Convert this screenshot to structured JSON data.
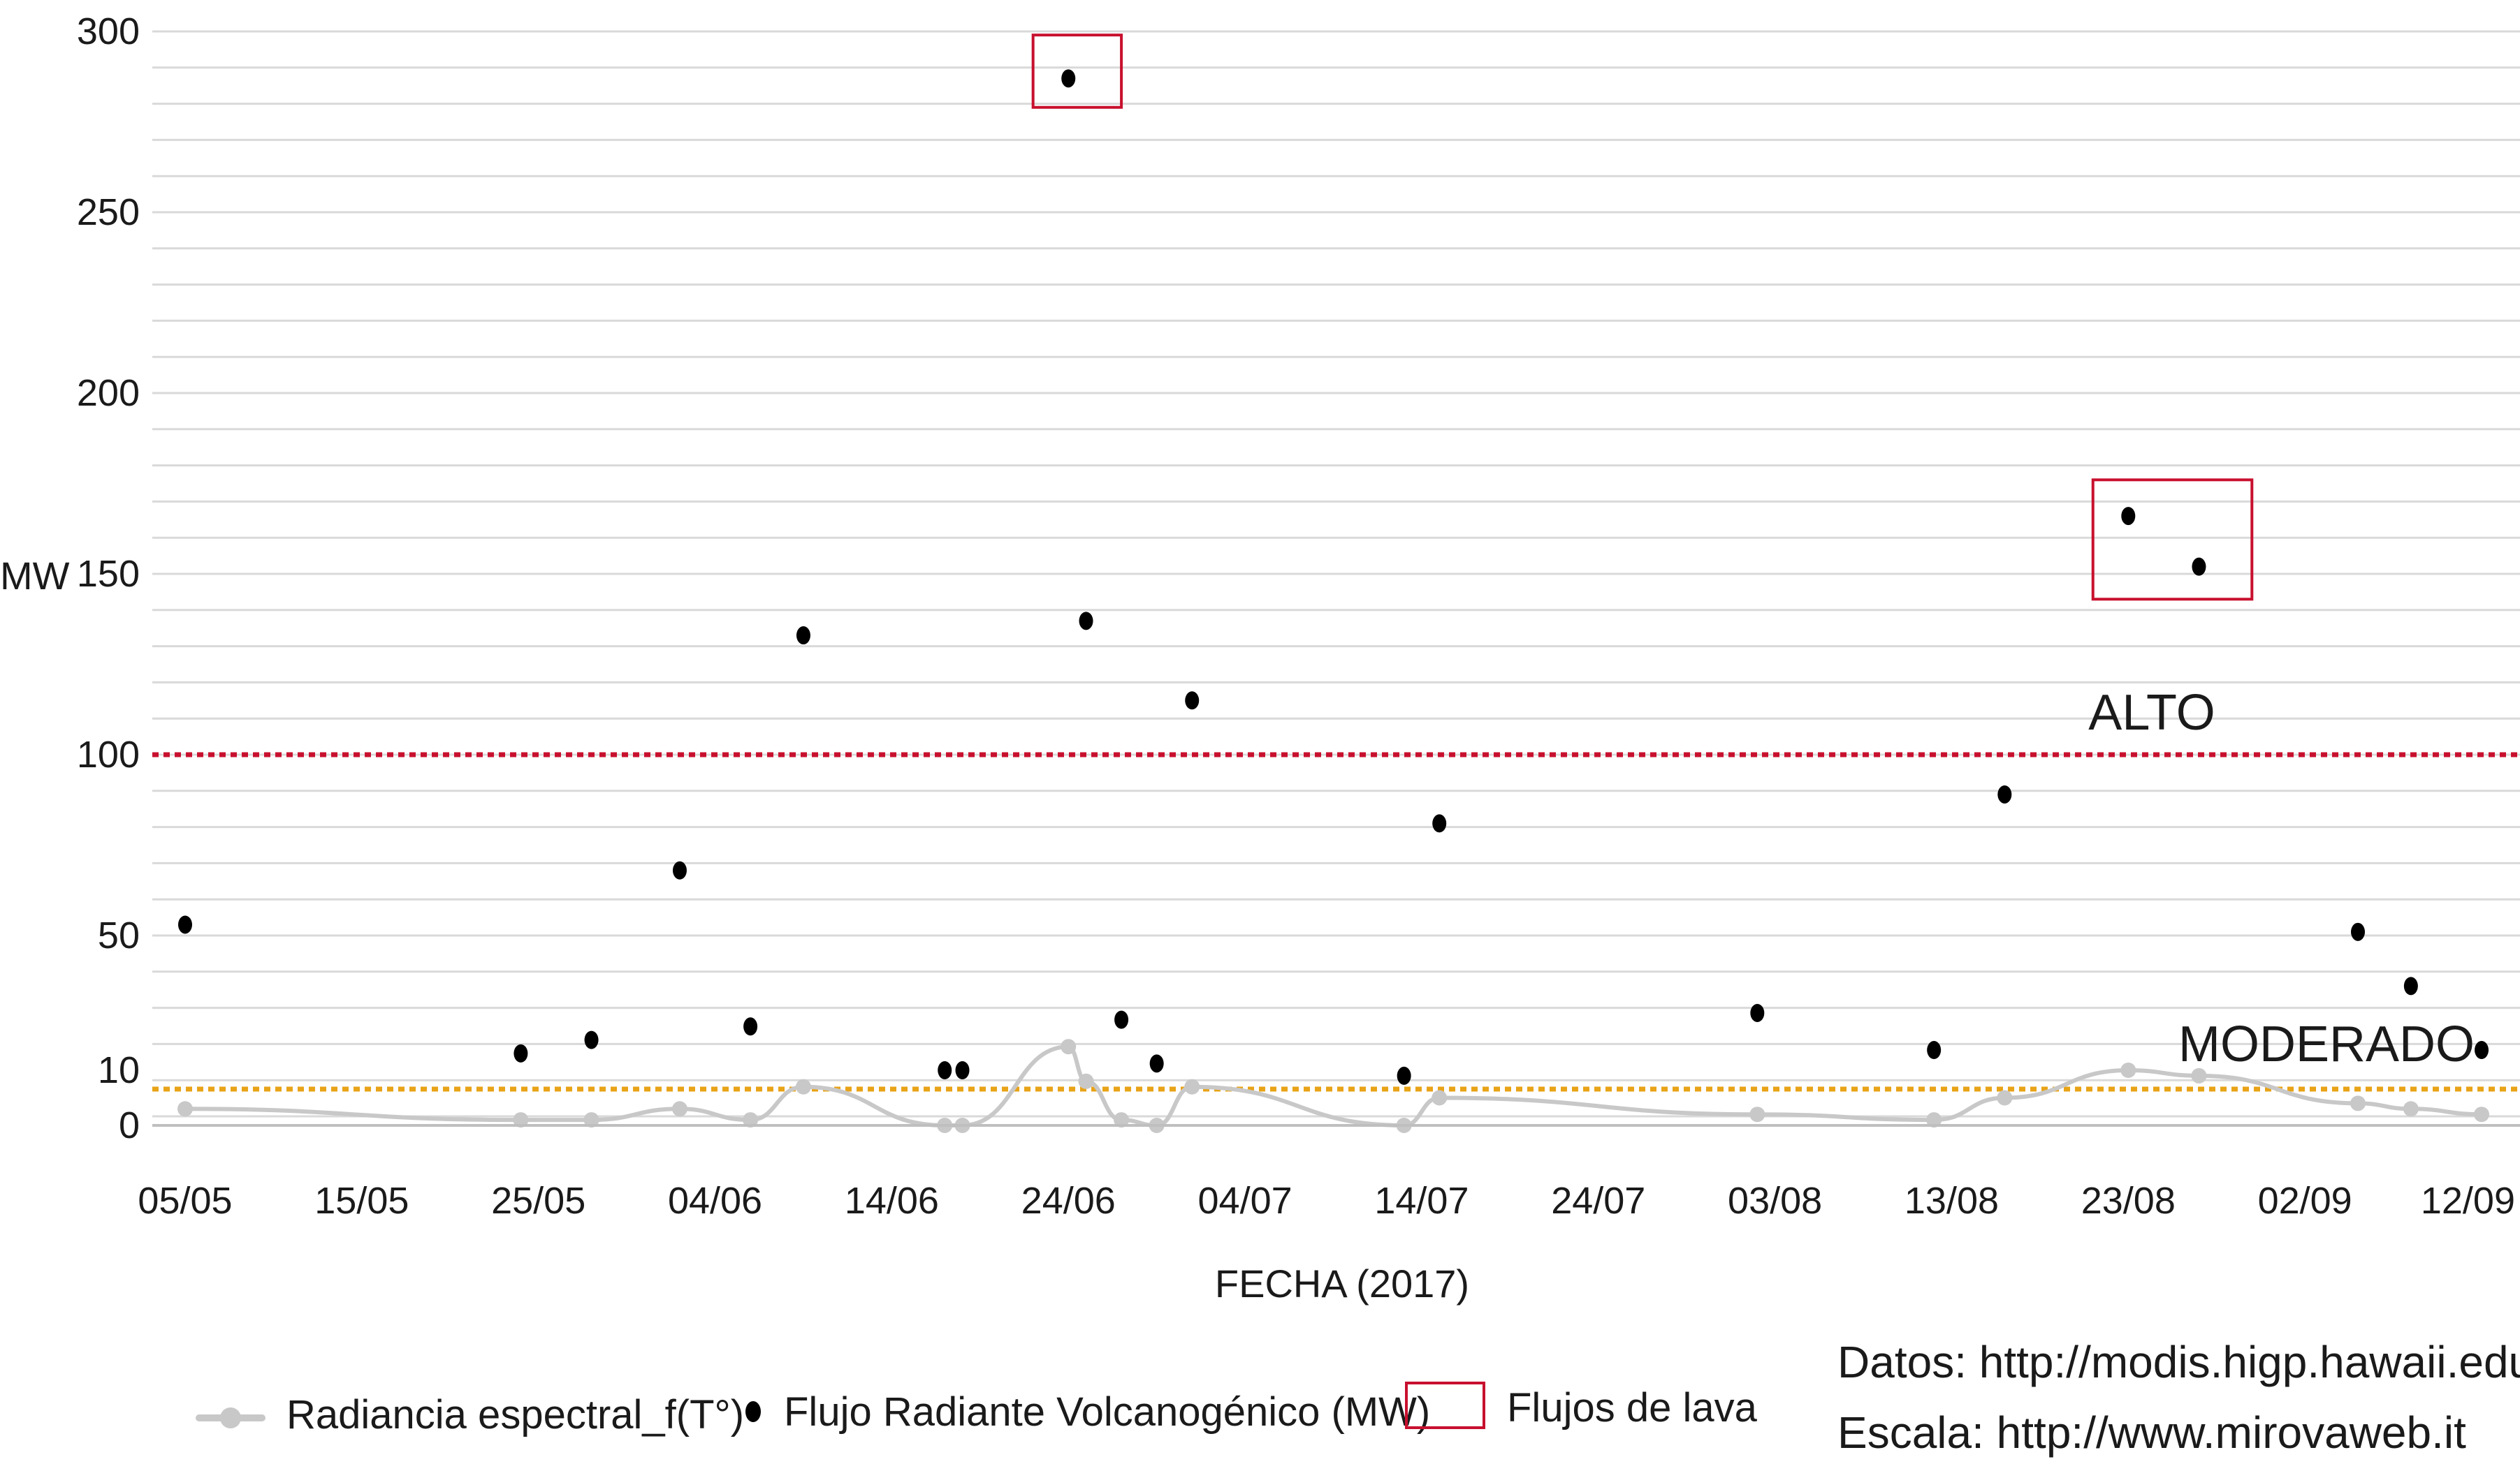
{
  "chart_data": {
    "type": "scatter",
    "xlabel": "FECHA (2017)",
    "ylabel": "MW",
    "x_ticks": [
      "05/05",
      "15/05",
      "25/05",
      "04/06",
      "14/06",
      "24/06",
      "04/07",
      "14/07",
      "24/07",
      "03/08",
      "13/08",
      "23/08",
      "02/09",
      "12/09"
    ],
    "x_range": [
      "2017-05-05",
      "2017-09-12"
    ],
    "y_ticks": [
      {
        "label": "0",
        "value": 0
      },
      {
        "label": "10",
        "value": 10
      },
      {
        "label": "50",
        "value": 50
      },
      {
        "label": "100",
        "value": 100
      },
      {
        "label": "150",
        "value": 150
      },
      {
        "label": "200",
        "value": 200
      },
      {
        "label": "250",
        "value": 250
      },
      {
        "label": "300",
        "value": 300
      }
    ],
    "ylim": [
      0,
      300
    ],
    "grid": true,
    "series": [
      {
        "name": "Flujo Radiante Volcanogénico (MW)",
        "kind": "points",
        "color": "#000000",
        "points": [
          {
            "x": "2017-05-05",
            "y": 53
          },
          {
            "x": "2017-05-24",
            "y": 15
          },
          {
            "x": "2017-05-28",
            "y": 19
          },
          {
            "x": "2017-06-02",
            "y": 68
          },
          {
            "x": "2017-06-06",
            "y": 23
          },
          {
            "x": "2017-06-09",
            "y": 133
          },
          {
            "x": "2017-06-17",
            "y": 10
          },
          {
            "x": "2017-06-18",
            "y": 10
          },
          {
            "x": "2017-06-24",
            "y": 287
          },
          {
            "x": "2017-06-25",
            "y": 137
          },
          {
            "x": "2017-06-27",
            "y": 25
          },
          {
            "x": "2017-06-29",
            "y": 12
          },
          {
            "x": "2017-07-01",
            "y": 115
          },
          {
            "x": "2017-07-13",
            "y": 9
          },
          {
            "x": "2017-07-15",
            "y": 81
          },
          {
            "x": "2017-08-02",
            "y": 27
          },
          {
            "x": "2017-08-12",
            "y": 16
          },
          {
            "x": "2017-08-16",
            "y": 89
          },
          {
            "x": "2017-08-23",
            "y": 166
          },
          {
            "x": "2017-08-27",
            "y": 152
          },
          {
            "x": "2017-09-05",
            "y": 51
          },
          {
            "x": "2017-09-08",
            "y": 35
          },
          {
            "x": "2017-09-12",
            "y": 16
          }
        ]
      },
      {
        "name": "Radiancia espectral_f(T°)",
        "kind": "line",
        "color": "#c8c8c8",
        "points": [
          {
            "x": "2017-05-05",
            "y": 3
          },
          {
            "x": "2017-05-24",
            "y": 1
          },
          {
            "x": "2017-05-28",
            "y": 1
          },
          {
            "x": "2017-06-02",
            "y": 3
          },
          {
            "x": "2017-06-06",
            "y": 1
          },
          {
            "x": "2017-06-09",
            "y": 7
          },
          {
            "x": "2017-06-17",
            "y": 0
          },
          {
            "x": "2017-06-18",
            "y": 0
          },
          {
            "x": "2017-06-24",
            "y": 17
          },
          {
            "x": "2017-06-25",
            "y": 8
          },
          {
            "x": "2017-06-27",
            "y": 1
          },
          {
            "x": "2017-06-29",
            "y": 0
          },
          {
            "x": "2017-07-01",
            "y": 7
          },
          {
            "x": "2017-07-13",
            "y": 0
          },
          {
            "x": "2017-07-15",
            "y": 5
          },
          {
            "x": "2017-08-02",
            "y": 2
          },
          {
            "x": "2017-08-12",
            "y": 1
          },
          {
            "x": "2017-08-16",
            "y": 5
          },
          {
            "x": "2017-08-23",
            "y": 10
          },
          {
            "x": "2017-08-27",
            "y": 9
          },
          {
            "x": "2017-09-05",
            "y": 4
          },
          {
            "x": "2017-09-08",
            "y": 3
          },
          {
            "x": "2017-09-12",
            "y": 2
          }
        ]
      }
    ],
    "thresholds": [
      {
        "label": "ALTO",
        "value": 100,
        "color": "#c8102e"
      },
      {
        "label": "MODERADO",
        "value": 10,
        "color": "#e8a317"
      }
    ],
    "highlight_boxes": [
      {
        "name": "Flujos de lava",
        "color": "#c8102e",
        "x_range": [
          "2017-06-22",
          "2017-06-27"
        ],
        "y_range": [
          279,
          299
        ]
      },
      {
        "name": "Flujos de lava",
        "color": "#c8102e",
        "x_range": [
          "2017-08-21",
          "2017-08-30"
        ],
        "y_range": [
          143,
          176
        ]
      }
    ]
  },
  "legend": {
    "radiancia_label": "Radiancia espectral_f(T°)",
    "flujo_label": "Flujo Radiante Volcanogénico (MW)",
    "lava_label": "Flujos de lava",
    "position": "bottom"
  },
  "sources": {
    "datos": "Datos: http://modis.higp.hawaii.edu",
    "escala": "Escala: http://www.mirovaweb.it"
  },
  "colors": {
    "grid": "#d9d9d9",
    "axis": "#bfbfbf",
    "points": "#000000",
    "radiancia": "#c8c8c8",
    "alto": "#c8102e",
    "moderado": "#e8a317",
    "lava_box": "#c8102e"
  }
}
